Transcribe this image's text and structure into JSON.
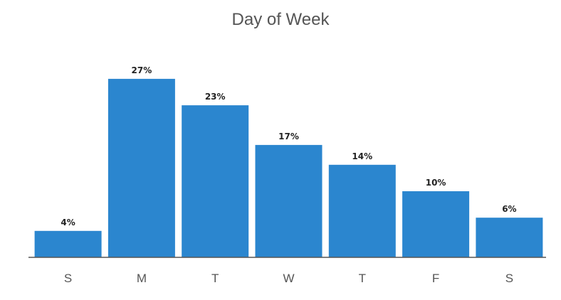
{
  "chart_data": {
    "type": "bar",
    "title": "Day of Week",
    "categories": [
      "S",
      "M",
      "T",
      "W",
      "T",
      "F",
      "S"
    ],
    "values": [
      4,
      27,
      23,
      17,
      14,
      10,
      6
    ],
    "value_labels": [
      "4%",
      "27%",
      "23%",
      "17%",
      "14%",
      "10%",
      "6%"
    ],
    "ylim": [
      0,
      30
    ],
    "grid": false,
    "legend": "none",
    "bar_color": "#2b86cf",
    "axis_color": "#555555"
  }
}
